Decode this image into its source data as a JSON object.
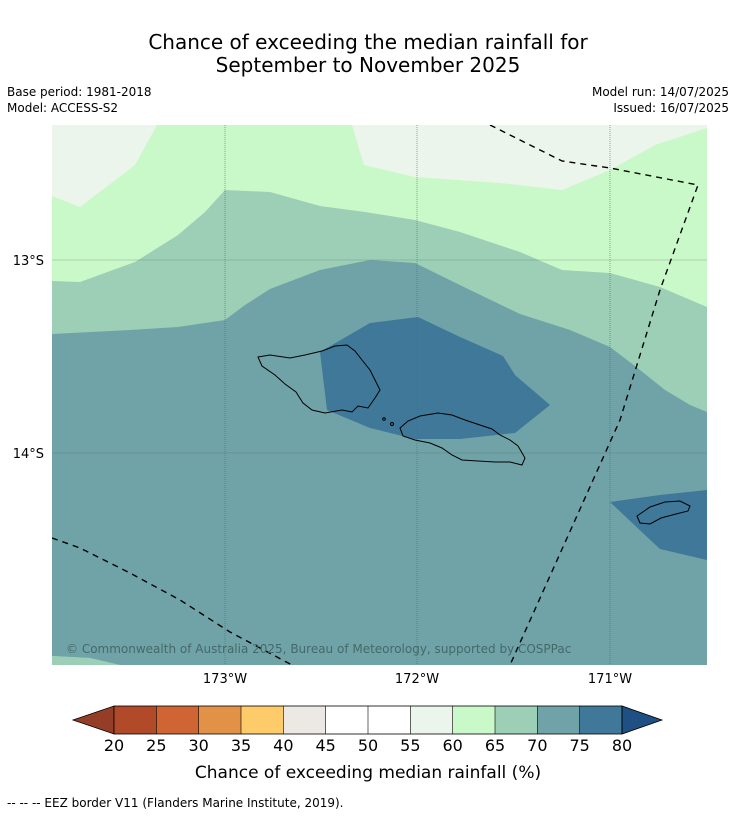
{
  "title": {
    "line1": "Chance of exceeding the median rainfall for",
    "line2": "September to November 2025"
  },
  "meta": {
    "base_period": "Base period: 1981-2018",
    "model": "Model: ACCESS-S2",
    "model_run": "Model run: 14/07/2025",
    "issued": "Issued: 16/07/2025"
  },
  "map": {
    "lat_labels": [
      "13°S",
      "14°S"
    ],
    "lon_labels": [
      "173°W",
      "172°W",
      "171°W"
    ],
    "copyright": "© Commonwealth of Australia 2025, Bureau of Meteorology, supported by COSPPac"
  },
  "colorbar": {
    "ticks": [
      "20",
      "25",
      "30",
      "35",
      "40",
      "45",
      "50",
      "55",
      "60",
      "65",
      "70",
      "75",
      "80"
    ],
    "colors": [
      "#b14a28",
      "#cf6533",
      "#e29247",
      "#fecb6a",
      "#ece9e4",
      "#ffffff",
      "#ffffff",
      "#ebf5eb",
      "#caf9c9",
      "#9ccfb6",
      "#6fa3a7",
      "#3f7898"
    ],
    "under_color": "#943d27",
    "over_color": "#1f4f83",
    "label": "Chance of exceeding median rainfall (%)"
  },
  "footnote": "--  --  -- EEZ border V11 (Flanders Marine Institute, 2019)."
}
